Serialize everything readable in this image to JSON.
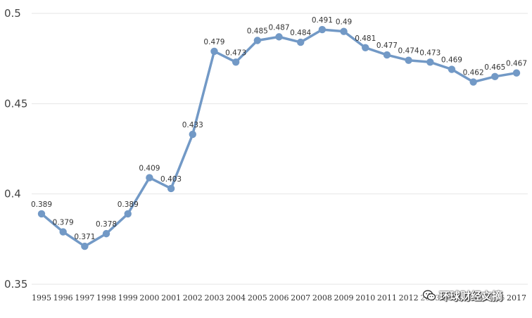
{
  "chart_data": {
    "type": "line",
    "categories": [
      "1995",
      "1996",
      "1997",
      "1998",
      "1999",
      "2000",
      "2001",
      "2002",
      "2003",
      "2004",
      "2005",
      "2006",
      "2007",
      "2008",
      "2009",
      "2010",
      "2011",
      "2012",
      "2013",
      "2014",
      "2015",
      "2016",
      "2017"
    ],
    "series": [
      {
        "values": [
          0.389,
          0.379,
          0.371,
          0.378,
          0.389,
          0.409,
          0.403,
          0.433,
          0.479,
          0.473,
          0.485,
          0.487,
          0.484,
          0.491,
          0.49,
          0.481,
          0.477,
          0.474,
          0.473,
          0.469,
          0.462,
          0.465,
          0.467
        ],
        "labels": [
          "0.389",
          "0.379",
          "0.371",
          "0.378",
          "0.389",
          "0.409",
          "0.403",
          "0.433",
          "0.479",
          "0.473",
          "0.485",
          "0.487",
          "0.484",
          "0.491",
          "0.49",
          "0.481",
          "0.477",
          "0.474",
          "0.473",
          "0.469",
          "0.462",
          "0.465",
          "0.467"
        ],
        "color": "#7299c6"
      }
    ],
    "ylim": [
      0.35,
      0.5
    ],
    "yticks": [
      "0.35",
      "0.4",
      "0.45",
      "0.5"
    ],
    "ytick_values": [
      0.35,
      0.4,
      0.45,
      0.5
    ],
    "grid": true,
    "legend": false
  },
  "watermark": {
    "text": "环球财经文摘",
    "icon": "wechat-icon"
  }
}
